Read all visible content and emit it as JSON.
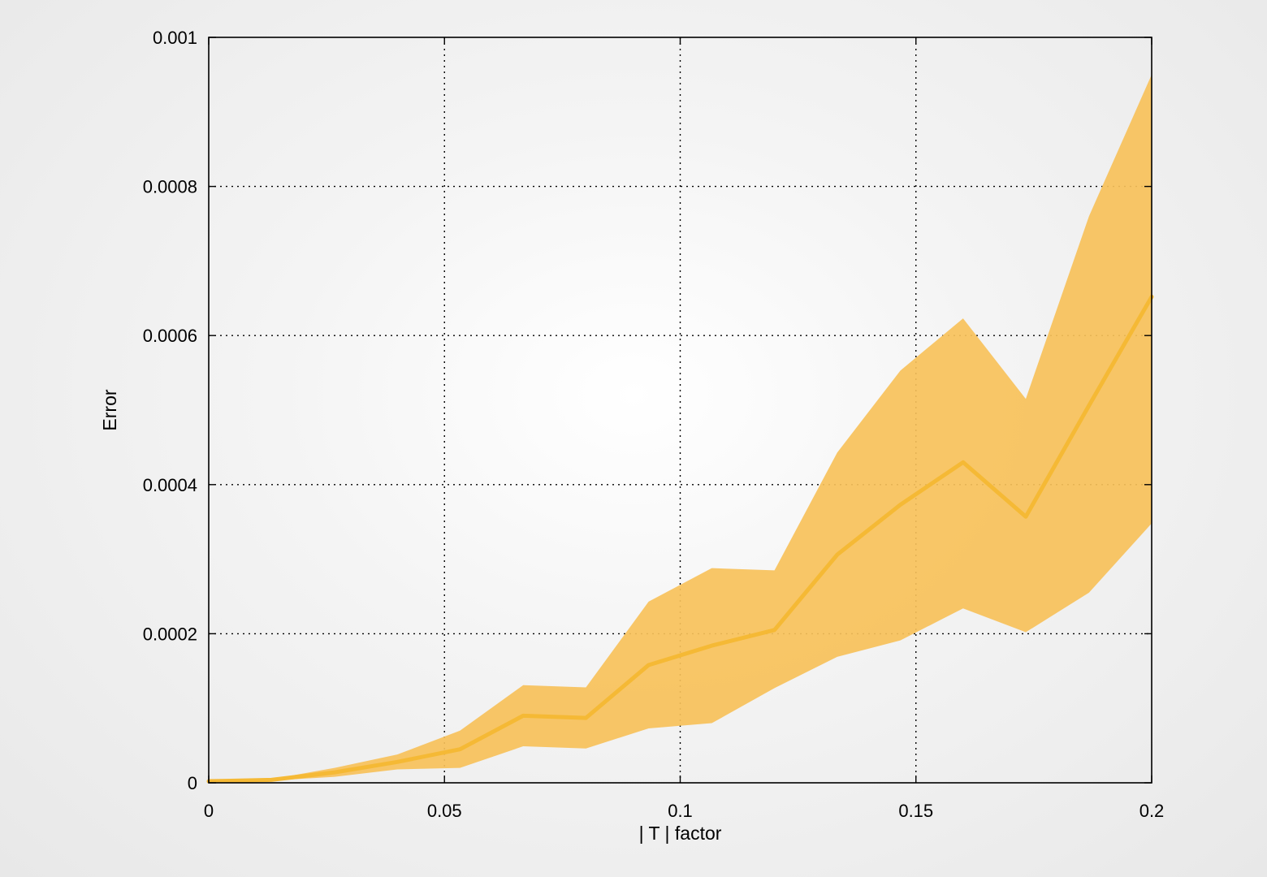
{
  "chart_data": {
    "type": "area",
    "xlabel": "| T | factor",
    "ylabel": "Error",
    "xlim": [
      0,
      0.2
    ],
    "ylim": [
      0,
      0.001
    ],
    "x_ticks": [
      {
        "value": 0,
        "label": "0"
      },
      {
        "value": 0.05,
        "label": "0.05"
      },
      {
        "value": 0.1,
        "label": "0.1"
      },
      {
        "value": 0.15,
        "label": "0.15"
      },
      {
        "value": 0.2,
        "label": "0.2"
      }
    ],
    "y_ticks": [
      {
        "value": 0,
        "label": "0"
      },
      {
        "value": 0.0002,
        "label": "0.0002"
      },
      {
        "value": 0.0004,
        "label": "0.0004"
      },
      {
        "value": 0.0006,
        "label": "0.0006"
      },
      {
        "value": 0.0008,
        "label": "0.0008"
      },
      {
        "value": 0.001,
        "label": "0.001"
      }
    ],
    "grid": true,
    "x": [
      0,
      0.0133,
      0.0267,
      0.04,
      0.0533,
      0.0667,
      0.08,
      0.0933,
      0.1067,
      0.12,
      0.1333,
      0.1467,
      0.16,
      0.1733,
      0.1867,
      0.2
    ],
    "series": [
      {
        "type": "band",
        "color": "#f7c15a",
        "upper": [
          5e-06,
          5e-06,
          2e-05,
          3.8e-05,
          7e-05,
          0.000131,
          0.000128,
          0.000243,
          0.000288,
          0.000285,
          0.000443,
          0.000553,
          0.000623,
          0.000515,
          0.00076,
          0.00095
        ],
        "lower": [
          1e-06,
          3e-06,
          8e-06,
          1.8e-05,
          2e-05,
          4.9e-05,
          4.6e-05,
          7.3e-05,
          8e-05,
          0.000127,
          0.000169,
          0.000191,
          0.000234,
          0.000202,
          0.000255,
          0.000348
        ]
      },
      {
        "type": "line",
        "color": "#f5b935",
        "values": [
          2e-06,
          4e-06,
          1.4e-05,
          2.8e-05,
          4.5e-05,
          9e-05,
          8.7e-05,
          0.000158,
          0.000184,
          0.000205,
          0.000306,
          0.000373,
          0.00043,
          0.000357,
          0.000506,
          0.000652
        ]
      }
    ]
  }
}
